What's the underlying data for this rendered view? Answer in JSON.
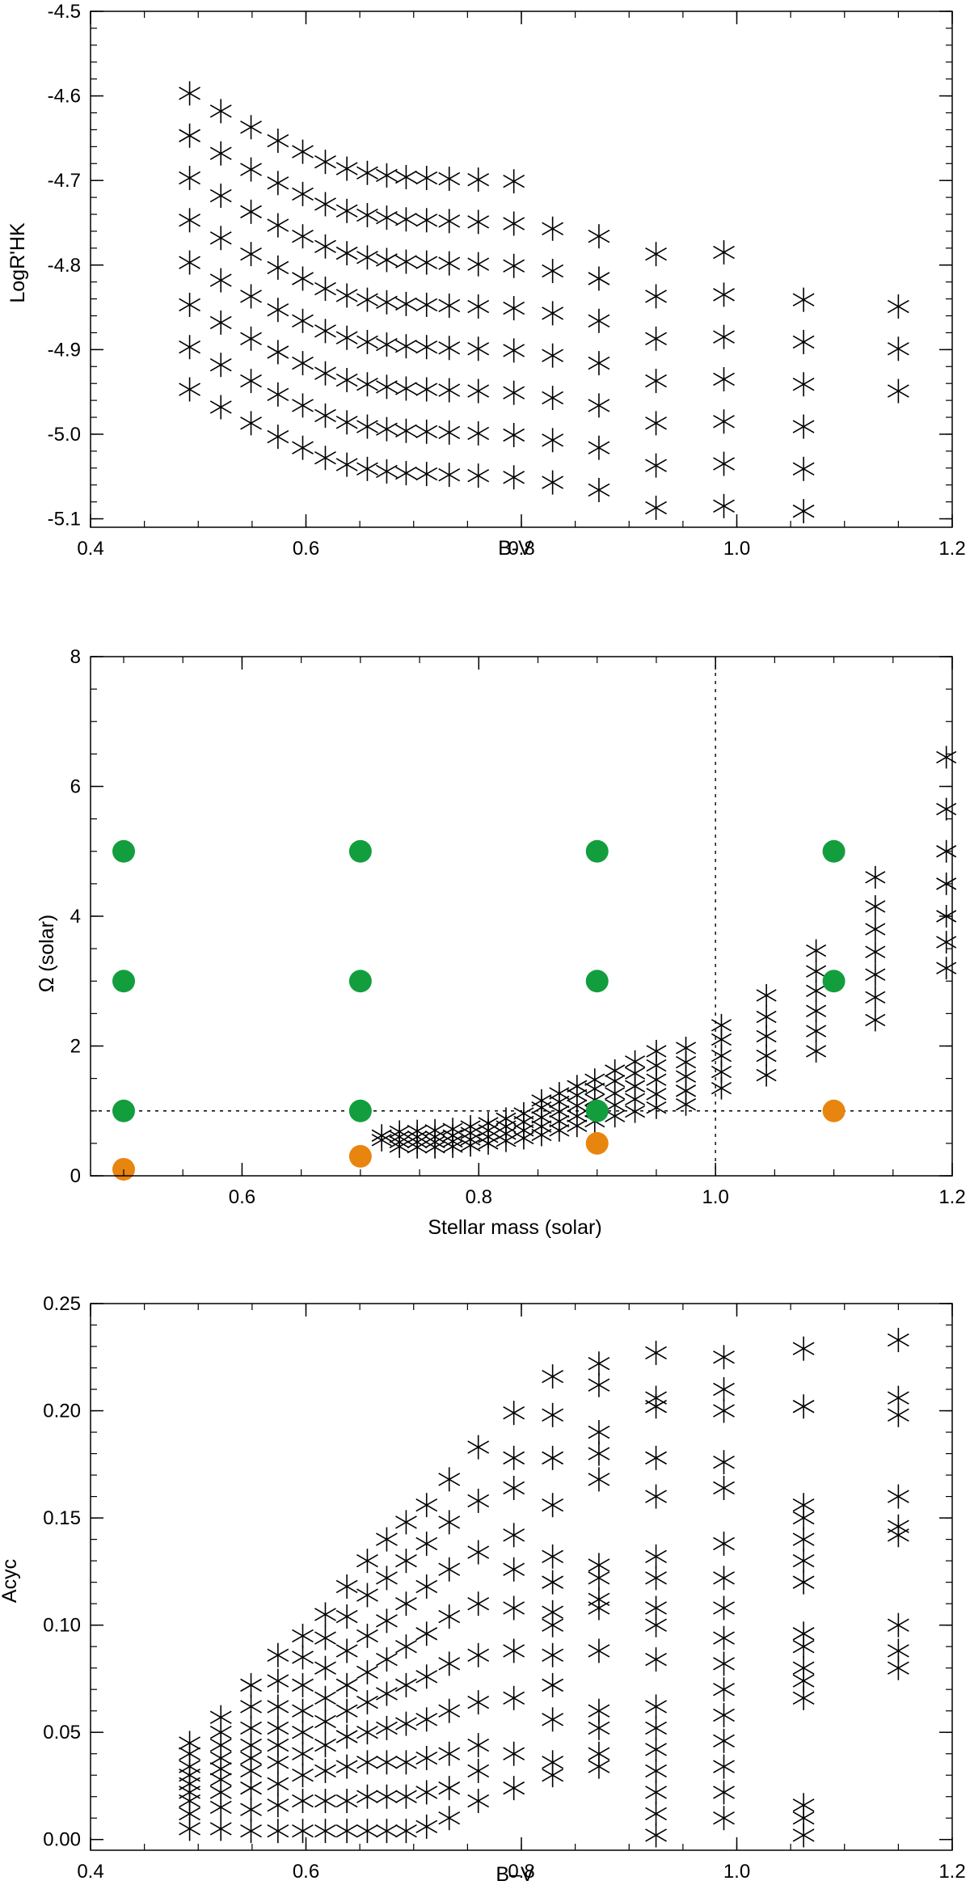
{
  "chart_data": [
    {
      "type": "scatter",
      "title": "",
      "xlabel": "B-V",
      "ylabel": "LogR'HK",
      "xlim": [
        0.4,
        1.2
      ],
      "ylim": [
        -5.11,
        -4.5
      ],
      "xticks": [
        "0.4",
        "0.6",
        "0.8",
        "1.0",
        "1.2"
      ],
      "yticks": [
        "-4.5",
        "-4.6",
        "-4.7",
        "-4.8",
        "-4.9",
        "-5.0",
        "-5.1"
      ],
      "marker": "asterisk",
      "columns": [
        {
          "x": 0.492,
          "y": [
            -4.597,
            -4.647,
            -4.697,
            -4.747,
            -4.797,
            -4.847,
            -4.897,
            -4.947
          ]
        },
        {
          "x": 0.521,
          "y": [
            -4.618,
            -4.668,
            -4.718,
            -4.768,
            -4.818,
            -4.868,
            -4.918,
            -4.968
          ]
        },
        {
          "x": 0.549,
          "y": [
            -4.637,
            -4.687,
            -4.737,
            -4.787,
            -4.837,
            -4.887,
            -4.937,
            -4.987
          ]
        },
        {
          "x": 0.574,
          "y": [
            -4.653,
            -4.703,
            -4.753,
            -4.803,
            -4.853,
            -4.903,
            -4.953,
            -5.003
          ]
        },
        {
          "x": 0.597,
          "y": [
            -4.666,
            -4.716,
            -4.766,
            -4.816,
            -4.866,
            -4.916,
            -4.966,
            -5.016
          ]
        },
        {
          "x": 0.618,
          "y": [
            -4.678,
            -4.728,
            -4.778,
            -4.828,
            -4.878,
            -4.928,
            -4.978,
            -5.028
          ]
        },
        {
          "x": 0.638,
          "y": [
            -4.686,
            -4.736,
            -4.786,
            -4.836,
            -4.886,
            -4.936,
            -4.986,
            -5.036
          ]
        },
        {
          "x": 0.657,
          "y": [
            -4.691,
            -4.741,
            -4.791,
            -4.841,
            -4.891,
            -4.941,
            -4.991,
            -5.041
          ]
        },
        {
          "x": 0.675,
          "y": [
            -4.694,
            -4.744,
            -4.794,
            -4.844,
            -4.894,
            -4.944,
            -4.994,
            -5.044
          ]
        },
        {
          "x": 0.693,
          "y": [
            -4.696,
            -4.746,
            -4.796,
            -4.846,
            -4.896,
            -4.946,
            -4.996,
            -5.046
          ]
        },
        {
          "x": 0.712,
          "y": [
            -4.697,
            -4.747,
            -4.797,
            -4.847,
            -4.897,
            -4.947,
            -4.997,
            -5.047
          ]
        },
        {
          "x": 0.733,
          "y": [
            -4.698,
            -4.748,
            -4.798,
            -4.848,
            -4.898,
            -4.948,
            -4.998,
            -5.048
          ]
        },
        {
          "x": 0.76,
          "y": [
            -4.699,
            -4.749,
            -4.799,
            -4.849,
            -4.899,
            -4.949,
            -4.999,
            -5.049
          ]
        },
        {
          "x": 0.793,
          "y": [
            -4.701,
            -4.751,
            -4.801,
            -4.851,
            -4.901,
            -4.951,
            -5.001,
            -5.051
          ]
        },
        {
          "x": 0.829,
          "y": [
            -4.757,
            -4.807,
            -4.857,
            -4.907,
            -4.957,
            -5.007,
            -5.057
          ]
        },
        {
          "x": 0.872,
          "y": [
            -4.766,
            -4.816,
            -4.866,
            -4.916,
            -4.966,
            -5.016,
            -5.066
          ]
        },
        {
          "x": 0.925,
          "y": [
            -4.787,
            -4.837,
            -4.887,
            -4.937,
            -4.987,
            -5.037,
            -5.087
          ]
        },
        {
          "x": 0.988,
          "y": [
            -4.785,
            -4.835,
            -4.885,
            -4.935,
            -4.985,
            -5.035,
            -5.085
          ]
        },
        {
          "x": 1.062,
          "y": [
            -4.841,
            -4.891,
            -4.941,
            -4.991,
            -5.041,
            -5.091
          ]
        },
        {
          "x": 1.15,
          "y": [
            -4.849,
            -4.899,
            -4.949
          ]
        }
      ]
    },
    {
      "type": "scatter",
      "title": "",
      "xlabel": "Stellar mass (solar)",
      "ylabel": "Ω (solar)",
      "xlim": [
        0.472,
        1.2
      ],
      "ylim": [
        0,
        8
      ],
      "xticks": [
        "0.6",
        "0.8",
        "1.0",
        "1.2"
      ],
      "yticks": [
        "0",
        "2",
        "4",
        "6",
        "8"
      ],
      "reference_lines": {
        "y": 1.0,
        "x": 1.0,
        "style": "dashed"
      },
      "green_points": [
        {
          "x": 0.5,
          "y": 1
        },
        {
          "x": 0.5,
          "y": 3
        },
        {
          "x": 0.5,
          "y": 5
        },
        {
          "x": 0.7,
          "y": 1
        },
        {
          "x": 0.7,
          "y": 3
        },
        {
          "x": 0.7,
          "y": 5
        },
        {
          "x": 0.9,
          "y": 1
        },
        {
          "x": 0.9,
          "y": 3
        },
        {
          "x": 0.9,
          "y": 5
        },
        {
          "x": 1.1,
          "y": 3
        },
        {
          "x": 1.1,
          "y": 5
        }
      ],
      "orange_points": [
        {
          "x": 0.5,
          "y": 0.1
        },
        {
          "x": 0.7,
          "y": 0.3
        },
        {
          "x": 0.9,
          "y": 0.5
        },
        {
          "x": 1.1,
          "y": 1.0
        }
      ],
      "green_color": "#139e3d",
      "orange_color": "#e8850f",
      "asterisk_columns": [
        {
          "x": 0.718,
          "y": [
            0.55,
            0.62
          ]
        },
        {
          "x": 0.733,
          "y": [
            0.45,
            0.52,
            0.6,
            0.68
          ]
        },
        {
          "x": 0.748,
          "y": [
            0.44,
            0.52,
            0.6,
            0.69
          ]
        },
        {
          "x": 0.763,
          "y": [
            0.44,
            0.52,
            0.6,
            0.7
          ]
        },
        {
          "x": 0.778,
          "y": [
            0.45,
            0.53,
            0.62,
            0.72
          ]
        },
        {
          "x": 0.793,
          "y": [
            0.47,
            0.56,
            0.66,
            0.76
          ]
        },
        {
          "x": 0.808,
          "y": [
            0.5,
            0.6,
            0.7,
            0.81
          ]
        },
        {
          "x": 0.823,
          "y": [
            0.54,
            0.65,
            0.76,
            0.88
          ]
        },
        {
          "x": 0.838,
          "y": [
            0.58,
            0.7,
            0.83,
            0.96
          ]
        },
        {
          "x": 0.853,
          "y": [
            0.63,
            0.76,
            0.9,
            1.05,
            1.16
          ]
        },
        {
          "x": 0.868,
          "y": [
            0.7,
            0.84,
            0.99,
            1.14,
            1.27
          ]
        },
        {
          "x": 0.883,
          "y": [
            0.77,
            0.92,
            1.08,
            1.24,
            1.38
          ]
        },
        {
          "x": 0.898,
          "y": [
            0.84,
            1.0,
            1.17,
            1.34,
            1.48
          ]
        },
        {
          "x": 0.915,
          "y": [
            0.92,
            1.09,
            1.27,
            1.46,
            1.62
          ]
        },
        {
          "x": 0.932,
          "y": [
            0.99,
            1.18,
            1.38,
            1.58,
            1.76
          ]
        },
        {
          "x": 0.95,
          "y": [
            1.05,
            1.26,
            1.48,
            1.7,
            1.92
          ]
        },
        {
          "x": 0.975,
          "y": [
            1.1,
            1.31,
            1.53,
            1.75,
            1.97
          ]
        },
        {
          "x": 1.005,
          "y": [
            1.35,
            1.6,
            1.85,
            2.1,
            2.32
          ]
        },
        {
          "x": 1.043,
          "y": [
            1.55,
            1.85,
            2.15,
            2.45,
            2.78
          ]
        },
        {
          "x": 1.085,
          "y": [
            1.92,
            2.23,
            2.54,
            2.85,
            3.15,
            3.47
          ]
        },
        {
          "x": 1.135,
          "y": [
            2.4,
            2.75,
            3.1,
            3.45,
            3.8,
            4.15,
            4.6
          ]
        },
        {
          "x": 1.195,
          "y": [
            3.2,
            3.6,
            4.0,
            4.5,
            5.0,
            5.65,
            6.45
          ]
        }
      ]
    },
    {
      "type": "scatter",
      "title": "",
      "xlabel": "B–V",
      "ylabel": "Acyc",
      "xlim": [
        0.4,
        1.2
      ],
      "ylim": [
        -0.005,
        0.25
      ],
      "xticks": [
        "0.4",
        "0.6",
        "0.8",
        "1.0",
        "1.2"
      ],
      "yticks": [
        "0.00",
        "0.05",
        "0.10",
        "0.15",
        "0.20",
        "0.25"
      ],
      "marker": "asterisk",
      "columns": [
        {
          "x": 0.492,
          "y": [
            0.005,
            0.012,
            0.018,
            0.022,
            0.026,
            0.03,
            0.034,
            0.04,
            0.045
          ]
        },
        {
          "x": 0.521,
          "y": [
            0.005,
            0.015,
            0.022,
            0.028,
            0.033,
            0.038,
            0.044,
            0.05,
            0.057
          ]
        },
        {
          "x": 0.549,
          "y": [
            0.004,
            0.014,
            0.024,
            0.032,
            0.038,
            0.044,
            0.052,
            0.062,
            0.072
          ]
        },
        {
          "x": 0.574,
          "y": [
            0.004,
            0.016,
            0.026,
            0.036,
            0.044,
            0.052,
            0.062,
            0.074,
            0.086
          ]
        },
        {
          "x": 0.597,
          "y": [
            0.004,
            0.018,
            0.03,
            0.04,
            0.05,
            0.06,
            0.072,
            0.085,
            0.095
          ]
        },
        {
          "x": 0.618,
          "y": [
            0.004,
            0.018,
            0.032,
            0.044,
            0.055,
            0.066,
            0.08,
            0.094,
            0.105
          ]
        },
        {
          "x": 0.638,
          "y": [
            0.004,
            0.018,
            0.034,
            0.048,
            0.06,
            0.072,
            0.088,
            0.104,
            0.118
          ]
        },
        {
          "x": 0.657,
          "y": [
            0.004,
            0.02,
            0.036,
            0.05,
            0.064,
            0.078,
            0.095,
            0.114,
            0.13
          ]
        },
        {
          "x": 0.675,
          "y": [
            0.004,
            0.02,
            0.036,
            0.052,
            0.068,
            0.084,
            0.102,
            0.122,
            0.14
          ]
        },
        {
          "x": 0.693,
          "y": [
            0.004,
            0.02,
            0.036,
            0.054,
            0.072,
            0.09,
            0.11,
            0.13,
            0.148
          ]
        },
        {
          "x": 0.712,
          "y": [
            0.006,
            0.022,
            0.038,
            0.056,
            0.076,
            0.096,
            0.118,
            0.138,
            0.156
          ]
        },
        {
          "x": 0.733,
          "y": [
            0.01,
            0.024,
            0.04,
            0.06,
            0.082,
            0.104,
            0.126,
            0.148,
            0.168
          ]
        },
        {
          "x": 0.76,
          "y": [
            0.018,
            0.032,
            0.044,
            0.064,
            0.086,
            0.11,
            0.134,
            0.158,
            0.183
          ]
        },
        {
          "x": 0.793,
          "y": [
            0.024,
            0.04,
            0.066,
            0.088,
            0.108,
            0.126,
            0.142,
            0.164,
            0.178,
            0.199
          ]
        },
        {
          "x": 0.829,
          "y": [
            0.03,
            0.036,
            0.056,
            0.072,
            0.086,
            0.1,
            0.106,
            0.12,
            0.132,
            0.156,
            0.178,
            0.198,
            0.216
          ]
        },
        {
          "x": 0.872,
          "y": [
            0.034,
            0.04,
            0.052,
            0.06,
            0.088,
            0.108,
            0.112,
            0.122,
            0.128,
            0.168,
            0.18,
            0.19,
            0.212,
            0.222
          ]
        },
        {
          "x": 0.925,
          "y": [
            0.002,
            0.012,
            0.022,
            0.032,
            0.042,
            0.052,
            0.062,
            0.084,
            0.1,
            0.108,
            0.122,
            0.132,
            0.16,
            0.178,
            0.202,
            0.206,
            0.227
          ]
        },
        {
          "x": 0.988,
          "y": [
            0.01,
            0.022,
            0.034,
            0.046,
            0.058,
            0.07,
            0.082,
            0.094,
            0.108,
            0.122,
            0.138,
            0.164,
            0.176,
            0.2,
            0.21,
            0.225
          ]
        },
        {
          "x": 1.062,
          "y": [
            0.002,
            0.01,
            0.016,
            0.066,
            0.074,
            0.08,
            0.09,
            0.096,
            0.12,
            0.13,
            0.14,
            0.15,
            0.156,
            0.202,
            0.229
          ]
        },
        {
          "x": 1.15,
          "y": [
            0.08,
            0.088,
            0.1,
            0.142,
            0.146,
            0.16,
            0.198,
            0.206,
            0.233
          ]
        }
      ]
    }
  ]
}
